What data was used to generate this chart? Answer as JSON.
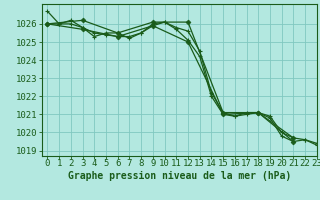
{
  "title": "Graphe pression niveau de la mer (hPa)",
  "bg_color": "#b3e8e0",
  "plot_bg_color": "#b3e8e0",
  "grid_color": "#80c8c0",
  "line_color": "#1a5c1a",
  "marker_color": "#1a5c1a",
  "xlim": [
    -0.5,
    23
  ],
  "ylim": [
    1018.7,
    1027.1
  ],
  "xlabel_fontsize": 6.5,
  "ylabel_fontsize": 6.5,
  "title_fontsize": 7,
  "series": [
    {
      "x": [
        0,
        1,
        2,
        3,
        4,
        5,
        6,
        7,
        8,
        9,
        10,
        11,
        12,
        13,
        14,
        15,
        16,
        17,
        18,
        19,
        20,
        21,
        22,
        23
      ],
      "y": [
        1026.7,
        1026.0,
        1026.2,
        1025.8,
        1025.3,
        1025.5,
        1025.5,
        1025.2,
        1025.5,
        1026.0,
        1026.1,
        1025.8,
        1025.6,
        1024.5,
        1022.2,
        1021.1,
        1020.9,
        1021.1,
        1021.1,
        1020.8,
        1019.8,
        1019.5,
        1019.6,
        1019.3
      ]
    },
    {
      "x": [
        0,
        1,
        2,
        3,
        4,
        5,
        6,
        7,
        8,
        9,
        10,
        11,
        12,
        13,
        14,
        15,
        16,
        17,
        18,
        19,
        20,
        21,
        22,
        23
      ],
      "y": [
        1026.0,
        1026.0,
        1026.0,
        1025.8,
        1025.5,
        1025.4,
        1025.3,
        1025.3,
        1025.5,
        1025.9,
        1026.1,
        1025.7,
        1025.1,
        1024.2,
        1022.0,
        1021.0,
        1020.9,
        1021.0,
        1021.1,
        1020.9,
        1020.0,
        1019.7,
        1019.6,
        1019.4
      ]
    },
    {
      "x": [
        0,
        3,
        6,
        9,
        12,
        15,
        18,
        21
      ],
      "y": [
        1026.0,
        1026.2,
        1025.5,
        1026.1,
        1026.1,
        1021.1,
        1021.1,
        1019.5
      ]
    },
    {
      "x": [
        0,
        3,
        6,
        9,
        12,
        15,
        18,
        21
      ],
      "y": [
        1026.0,
        1025.7,
        1025.3,
        1025.9,
        1025.0,
        1021.0,
        1021.1,
        1019.7
      ]
    }
  ],
  "xticks": [
    0,
    1,
    2,
    3,
    4,
    5,
    6,
    7,
    8,
    9,
    10,
    11,
    12,
    13,
    14,
    15,
    16,
    17,
    18,
    19,
    20,
    21,
    22,
    23
  ],
  "yticks": [
    1019,
    1020,
    1021,
    1022,
    1023,
    1024,
    1025,
    1026
  ]
}
